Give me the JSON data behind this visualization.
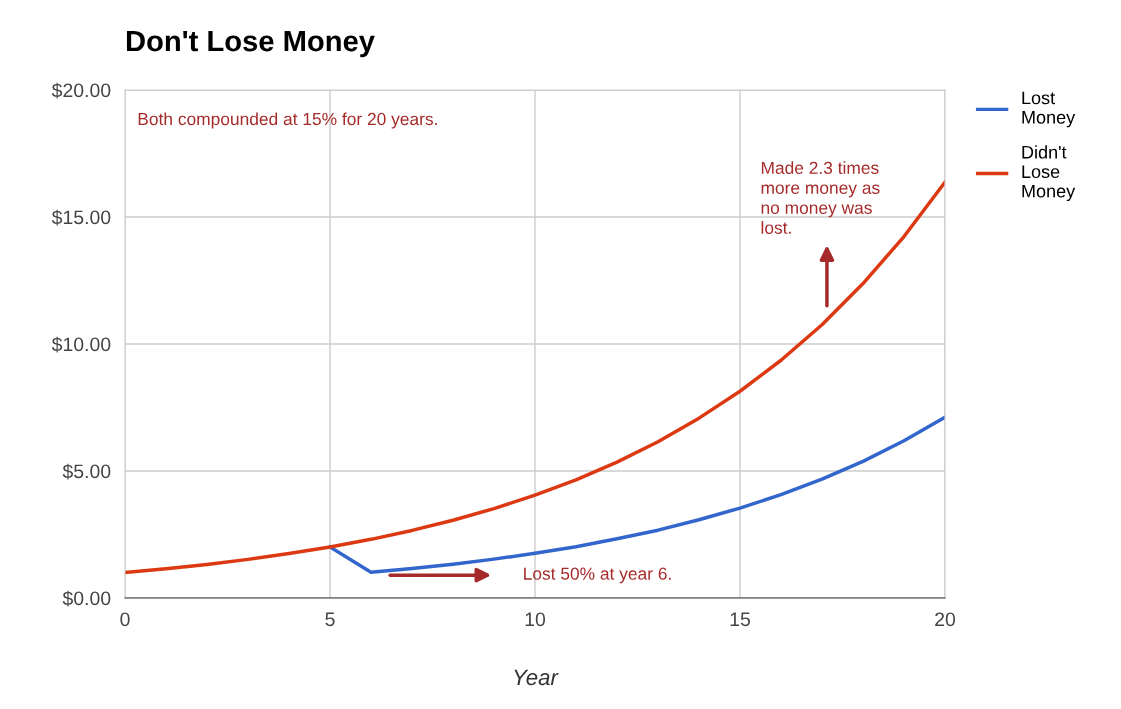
{
  "chart_data": {
    "type": "line",
    "title": "Don't Lose Money",
    "xlabel": "Year",
    "x": [
      0,
      1,
      2,
      3,
      4,
      5,
      6,
      7,
      8,
      9,
      10,
      11,
      12,
      13,
      14,
      15,
      16,
      17,
      18,
      19,
      20
    ],
    "series": [
      {
        "name": "Lost Money",
        "color": "#3366cc",
        "values": [
          null,
          null,
          null,
          null,
          null,
          2.01,
          1.01,
          1.16,
          1.33,
          1.53,
          1.76,
          2.02,
          2.33,
          2.67,
          3.08,
          3.54,
          4.07,
          4.68,
          5.38,
          6.19,
          7.12
        ]
      },
      {
        "name": "Didn't Lose Money",
        "color": "#dc3912",
        "values": [
          1.0,
          1.15,
          1.32,
          1.52,
          1.75,
          2.01,
          2.31,
          2.66,
          3.06,
          3.52,
          4.05,
          4.65,
          5.35,
          6.15,
          7.08,
          8.14,
          9.36,
          10.76,
          12.38,
          14.23,
          16.37
        ]
      }
    ],
    "xlim": [
      0,
      20
    ],
    "xticks": [
      0,
      5,
      10,
      15,
      20
    ],
    "ylim": [
      0,
      20
    ],
    "yticks": [
      {
        "value": 0,
        "label": "$0.00"
      },
      {
        "value": 5,
        "label": "$5.00"
      },
      {
        "value": 10,
        "label": "$10.00"
      },
      {
        "value": 15,
        "label": "$15.00"
      },
      {
        "value": 20,
        "label": "$20.00"
      }
    ],
    "grid": true,
    "legend": "right",
    "marker": "none",
    "line_style": "solid",
    "annotations": [
      "Both compounded at 15% for 20 years.",
      "Lost 50% at year 6.",
      "Made 2.3 times\nmore money as\nno money was\nlost."
    ]
  }
}
